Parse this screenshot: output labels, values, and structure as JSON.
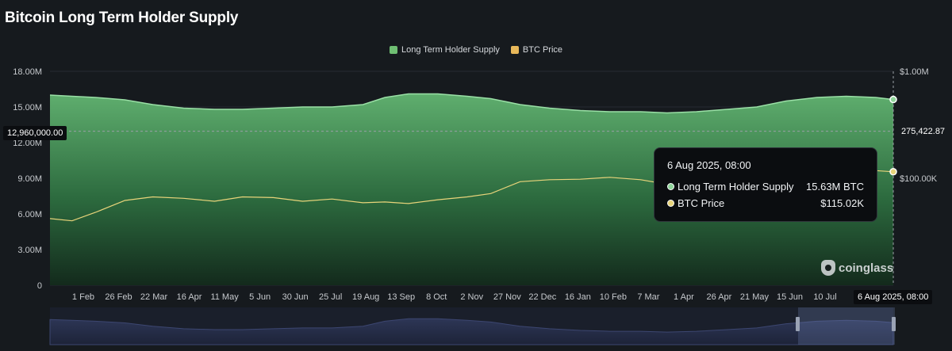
{
  "title": "Bitcoin Long Term Holder Supply",
  "legend": [
    {
      "label": "Long Term Holder Supply",
      "color": "#6fbf73"
    },
    {
      "label": "BTC Price",
      "color": "#e8b85a"
    }
  ],
  "tooltip": {
    "date": "6 Aug 2025, 08:00",
    "rows": [
      {
        "label": "Long Term Holder Supply",
        "value": "15.63M BTC",
        "color": "#8fd49a"
      },
      {
        "label": "BTC Price",
        "value": "$115.02K",
        "color": "#e8d47a"
      }
    ]
  },
  "crosshair": {
    "left_value": "12,960,000.00",
    "right_value": "275,422.87",
    "x_label": "6 Aug 2025, 08:00"
  },
  "watermark": "coinglass",
  "chart_data": {
    "type": "area",
    "title": "Bitcoin Long Term Holder Supply",
    "x_tick_labels": [
      "1 Feb",
      "26 Feb",
      "22 Mar",
      "16 Apr",
      "11 May",
      "5 Jun",
      "30 Jun",
      "25 Jul",
      "19 Aug",
      "13 Sep",
      "8 Oct",
      "2 Nov",
      "27 Nov",
      "22 Dec",
      "16 Jan",
      "10 Feb",
      "7 Mar",
      "1 Apr",
      "26 Apr",
      "21 May",
      "15 Jun",
      "10 Jul"
    ],
    "y_left": {
      "ticks": [
        "0",
        "3.00M",
        "6.00M",
        "9.00M",
        "12.00M",
        "15.00M",
        "18.00M"
      ],
      "range": [
        0,
        18000000
      ]
    },
    "y_right": {
      "ticks": [
        "$100.00K",
        "$1.00M"
      ],
      "scale": "log",
      "range": [
        10000,
        1000000
      ]
    },
    "x": [
      "2024-01-10",
      "2024-01-25",
      "2024-02-10",
      "2024-03-01",
      "2024-03-20",
      "2024-04-10",
      "2024-05-01",
      "2024-05-20",
      "2024-06-10",
      "2024-06-30",
      "2024-07-20",
      "2024-08-10",
      "2024-08-25",
      "2024-09-10",
      "2024-09-30",
      "2024-10-20",
      "2024-11-05",
      "2024-11-25",
      "2024-12-15",
      "2025-01-05",
      "2025-01-25",
      "2025-02-15",
      "2025-03-05",
      "2025-03-25",
      "2025-04-15",
      "2025-05-05",
      "2025-05-25",
      "2025-06-15",
      "2025-07-05",
      "2025-07-25",
      "2025-08-06"
    ],
    "series": [
      {
        "name": "Long Term Holder Supply",
        "axis": "left",
        "color": "#6fbf73",
        "values": [
          16.0,
          15.9,
          15.8,
          15.6,
          15.2,
          14.9,
          14.8,
          14.8,
          14.9,
          15.0,
          15.0,
          15.2,
          15.8,
          16.1,
          16.1,
          15.9,
          15.7,
          15.2,
          14.9,
          14.7,
          14.6,
          14.6,
          14.5,
          14.6,
          14.8,
          15.0,
          15.5,
          15.8,
          15.9,
          15.8,
          15.63
        ]
      },
      {
        "name": "BTC Price",
        "axis": "right",
        "color": "#e8d47a",
        "values": [
          42000,
          40000,
          48000,
          62000,
          67000,
          65000,
          61000,
          67000,
          66000,
          61000,
          64000,
          59000,
          60000,
          58000,
          63000,
          67000,
          72000,
          93000,
          97000,
          98000,
          102000,
          97000,
          88000,
          85000,
          84000,
          96000,
          108000,
          105000,
          108000,
          118000,
          115020
        ]
      }
    ]
  }
}
